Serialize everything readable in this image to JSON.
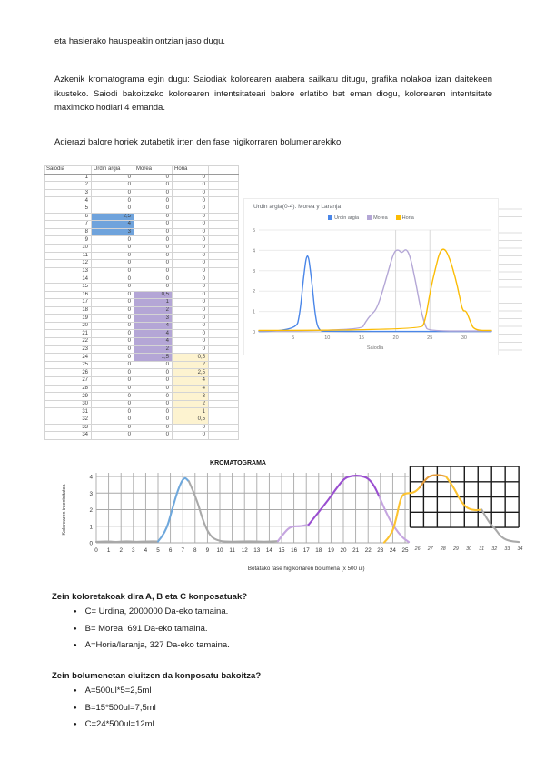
{
  "document": {
    "intro": "eta hasierako hauspeakin ontzian jaso dugu.",
    "paragraph": "Azkenik kromatograma egin dugu: Saiodiak kolorearen arabera sailkatu ditugu, grafika nolakoa izan daitekeen ikusteko. Saiodi bakoitzeko kolorearen intentsitateari balore erlatibo bat eman diogu, kolorearen intentsitate maximoko hodiari 4 emanda.",
    "instruction": "Adierazi balore horiek zutabetik irten den fase higikorraren bolumenarekiko."
  },
  "table": {
    "headers": [
      "Saiodia",
      "Urdin argia",
      "Morea",
      "Horia"
    ],
    "rows": [
      [
        "1",
        "0",
        "0",
        "0"
      ],
      [
        "2",
        "0",
        "0",
        "0"
      ],
      [
        "3",
        "0",
        "0",
        "0"
      ],
      [
        "4",
        "0",
        "0",
        "0"
      ],
      [
        "5",
        "0",
        "0",
        "0"
      ],
      [
        "6",
        "2,5",
        "0",
        "0"
      ],
      [
        "7",
        "4",
        "0",
        "0"
      ],
      [
        "8",
        "3",
        "0",
        "0"
      ],
      [
        "9",
        "0",
        "0",
        "0"
      ],
      [
        "10",
        "0",
        "0",
        "0"
      ],
      [
        "11",
        "0",
        "0",
        "0"
      ],
      [
        "12",
        "0",
        "0",
        "0"
      ],
      [
        "13",
        "0",
        "0",
        "0"
      ],
      [
        "14",
        "0",
        "0",
        "0"
      ],
      [
        "15",
        "0",
        "0",
        "0"
      ],
      [
        "16",
        "0",
        "0,5",
        "0"
      ],
      [
        "17",
        "0",
        "1",
        "0"
      ],
      [
        "18",
        "0",
        "2",
        "0"
      ],
      [
        "19",
        "0",
        "3",
        "0"
      ],
      [
        "20",
        "0",
        "4",
        "0"
      ],
      [
        "21",
        "0",
        "4",
        "0"
      ],
      [
        "22",
        "0",
        "4",
        "0"
      ],
      [
        "23",
        "0",
        "2",
        "0"
      ],
      [
        "24",
        "0",
        "1,5",
        "0,5"
      ],
      [
        "25",
        "0",
        "0",
        "2"
      ],
      [
        "26",
        "0",
        "0",
        "2,5"
      ],
      [
        "27",
        "0",
        "0",
        "4"
      ],
      [
        "28",
        "0",
        "0",
        "4"
      ],
      [
        "29",
        "0",
        "0",
        "3"
      ],
      [
        "30",
        "0",
        "0",
        "2"
      ],
      [
        "31",
        "0",
        "0",
        "1"
      ],
      [
        "32",
        "0",
        "0",
        "0,5"
      ],
      [
        "33",
        "0",
        "0",
        "0"
      ],
      [
        "34",
        "0",
        "0",
        "0"
      ]
    ],
    "highlights": {
      "urdin_argia": {
        "rows": [
          6,
          8
        ],
        "color": "#6fa3dc"
      },
      "morea": {
        "rows": [
          16,
          24
        ],
        "color": "#b4a6d6"
      },
      "horia": {
        "rows": [
          24,
          32
        ],
        "color": "#fdf3d0"
      }
    }
  },
  "chart_data": [
    {
      "id": "saiodi-chart",
      "type": "line",
      "title": "Urdin argia(0-4). Morea y Laranja",
      "xlabel": "Saiodia",
      "xlim": [
        0,
        34
      ],
      "ylim": [
        0,
        5
      ],
      "x_ticks": [
        5,
        10,
        15,
        20,
        25,
        30
      ],
      "y_ticks": [
        0,
        1,
        2,
        3,
        4,
        5
      ],
      "extra_vlines": [
        20,
        25
      ],
      "legend_position": "top",
      "series": [
        {
          "name": "Urdin argia",
          "color": "#4a86e8",
          "points": [
            [
              0,
              0.02
            ],
            [
              5.4,
              0.02
            ],
            [
              6,
              0.9
            ],
            [
              6.5,
              2.6
            ],
            [
              7.1,
              4.1
            ],
            [
              7.7,
              2.6
            ],
            [
              8.2,
              0.9
            ],
            [
              8.7,
              0.05
            ],
            [
              10,
              0.02
            ],
            [
              34,
              0.02
            ]
          ]
        },
        {
          "name": "Morea",
          "color": "#b4a7d6",
          "points": [
            [
              0,
              0.04
            ],
            [
              14.9,
              0.04
            ],
            [
              15.6,
              0.5
            ],
            [
              16.4,
              0.85
            ],
            [
              17.2,
              1.1
            ],
            [
              18.2,
              2.1
            ],
            [
              19.1,
              3.2
            ],
            [
              19.8,
              3.95
            ],
            [
              20.4,
              4.05
            ],
            [
              20.9,
              3.85
            ],
            [
              21.5,
              4.1
            ],
            [
              22.1,
              3.75
            ],
            [
              22.9,
              2.5
            ],
            [
              23.6,
              1.2
            ],
            [
              24.3,
              0.3
            ],
            [
              24.8,
              0.04
            ],
            [
              34,
              0.04
            ]
          ]
        },
        {
          "name": "Horia",
          "color": "#fbbc04",
          "points": [
            [
              0,
              0.07
            ],
            [
              23.6,
              0.07
            ],
            [
              24.3,
              0.5
            ],
            [
              25,
              1.9
            ],
            [
              25.8,
              3.1
            ],
            [
              26.5,
              4.0
            ],
            [
              27.2,
              4.1
            ],
            [
              27.9,
              3.6
            ],
            [
              28.7,
              2.7
            ],
            [
              29.3,
              1.8
            ],
            [
              29.8,
              1.0
            ],
            [
              30.3,
              1.05
            ],
            [
              30.9,
              0.5
            ],
            [
              31.5,
              0.07
            ],
            [
              34,
              0.07
            ]
          ]
        }
      ]
    },
    {
      "id": "kromatograma",
      "type": "line",
      "title": "KROMATOGRAMA",
      "xlabel": "Botatako fase higikorraren bolumena (x 500 ul)",
      "ylabel": "Kolorearen intentsitatea",
      "xlim": [
        0,
        34.5
      ],
      "ylim": [
        0,
        4
      ],
      "x_ticks": [
        0,
        1,
        2,
        3,
        4,
        5,
        6,
        7,
        8,
        9,
        10,
        11,
        12,
        13,
        14,
        15,
        16,
        17,
        18,
        19,
        20,
        21,
        22,
        23,
        24,
        25
      ],
      "handwritten_ticks": [
        26,
        27,
        28,
        29,
        30,
        31,
        32,
        33,
        34
      ],
      "y_ticks": [
        0,
        1,
        2,
        3,
        4
      ],
      "paper_grid": {
        "x0": 25.4,
        "x1": 34.2,
        "y0": 0.93,
        "y1": 4.6,
        "cols": 8,
        "rows": 4,
        "color": "#1a1a1a"
      },
      "series": [
        {
          "name": "Urdina",
          "segments": [
            {
              "color": "#a9a9a9",
              "points": [
                [
                  0,
                  0.06
                ],
                [
                  0.8,
                  0.1
                ],
                [
                  1.6,
                  0.04
                ],
                [
                  2.4,
                  0.1
                ],
                [
                  3.2,
                  0.05
                ],
                [
                  4.2,
                  0.09
                ],
                [
                  5,
                  0.08
                ]
              ]
            },
            {
              "color": "#6fa8dc",
              "points": [
                [
                  5,
                  0.08
                ],
                [
                  5.6,
                  0.6
                ],
                [
                  6.1,
                  1.9
                ],
                [
                  6.6,
                  3.2
                ],
                [
                  7.1,
                  4.0
                ],
                [
                  7.5,
                  3.7
                ]
              ]
            },
            {
              "color": "#a9a9a9",
              "points": [
                [
                  7.5,
                  3.7
                ],
                [
                  8.1,
                  2.7
                ],
                [
                  8.6,
                  1.4
                ],
                [
                  9.2,
                  0.4
                ],
                [
                  9.9,
                  0.1
                ],
                [
                  11,
                  0.05
                ],
                [
                  12.4,
                  0.1
                ],
                [
                  13.6,
                  0.05
                ],
                [
                  14.7,
                  0.1
                ]
              ]
            }
          ]
        },
        {
          "name": "Morea",
          "segments": [
            {
              "color": "#c5a5e0",
              "points": [
                [
                  14.7,
                  0.1
                ],
                [
                  15.3,
                  0.7
                ],
                [
                  15.8,
                  1.0
                ],
                [
                  16.6,
                  1.0
                ],
                [
                  17.2,
                  1.1
                ]
              ]
            },
            {
              "color": "#9a4fd0",
              "points": [
                [
                  17.2,
                  1.1
                ],
                [
                  18,
                  1.85
                ],
                [
                  18.8,
                  2.6
                ],
                [
                  19.5,
                  3.35
                ],
                [
                  20.1,
                  3.9
                ],
                [
                  20.7,
                  4.05
                ],
                [
                  21.4,
                  4.05
                ],
                [
                  22,
                  3.9
                ],
                [
                  22.5,
                  3.45
                ],
                [
                  22.9,
                  2.8
                ]
              ]
            },
            {
              "color": "#c5a5e0",
              "points": [
                [
                  22.9,
                  2.8
                ],
                [
                  23.5,
                  1.75
                ],
                [
                  24.1,
                  0.95
                ],
                [
                  24.8,
                  0.3
                ],
                [
                  25.3,
                  0.05
                ]
              ]
            }
          ]
        },
        {
          "name": "Horia",
          "segments": [
            {
              "color": "#fdc330",
              "points": [
                [
                  23.3,
                  0.02
                ],
                [
                  23.9,
                  0.45
                ],
                [
                  24.3,
                  1.5
                ],
                [
                  24.6,
                  2.6
                ],
                [
                  24.9,
                  3.0
                ],
                [
                  25.7,
                  3.0
                ],
                [
                  26.2,
                  3.35
                ]
              ]
            },
            {
              "color": "#e39b3b",
              "points": [
                [
                  26.2,
                  3.35
                ],
                [
                  26.7,
                  3.9
                ],
                [
                  27.2,
                  4.08
                ],
                [
                  27.8,
                  4.1
                ],
                [
                  28.3,
                  4.0
                ]
              ]
            },
            {
              "color": "#fdc330",
              "points": [
                [
                  28.3,
                  4.0
                ],
                [
                  28.9,
                  3.4
                ],
                [
                  29.4,
                  2.65
                ],
                [
                  29.9,
                  2.15
                ],
                [
                  30.5,
                  1.95
                ],
                [
                  31.2,
                  2.0
                ]
              ]
            },
            {
              "color": "#a9a9a9",
              "points": [
                [
                  31.2,
                  2.0
                ],
                [
                  31.8,
                  1.2
                ],
                [
                  32.3,
                  0.85
                ],
                [
                  32.7,
                  0.4
                ],
                [
                  33.3,
                  0.12
                ],
                [
                  34.2,
                  0.05
                ]
              ]
            }
          ]
        }
      ]
    }
  ],
  "questions": {
    "q1": {
      "heading": "Zein koloretakoak dira A, B eta C konposatuak?",
      "items": [
        "C= Urdina, 2000000 Da-eko tamaina.",
        "B= Morea, 691 Da-eko tamaina.",
        "A=Horia/laranja, 327 Da-eko tamaina."
      ]
    },
    "q2": {
      "heading": "Zein bolumenetan eluitzen da konposatu bakoitza?",
      "items": [
        "A=500ul*5=2,5ml",
        "B=15*500ul=7,5ml",
        "C=24*500ul=12ml"
      ]
    }
  }
}
